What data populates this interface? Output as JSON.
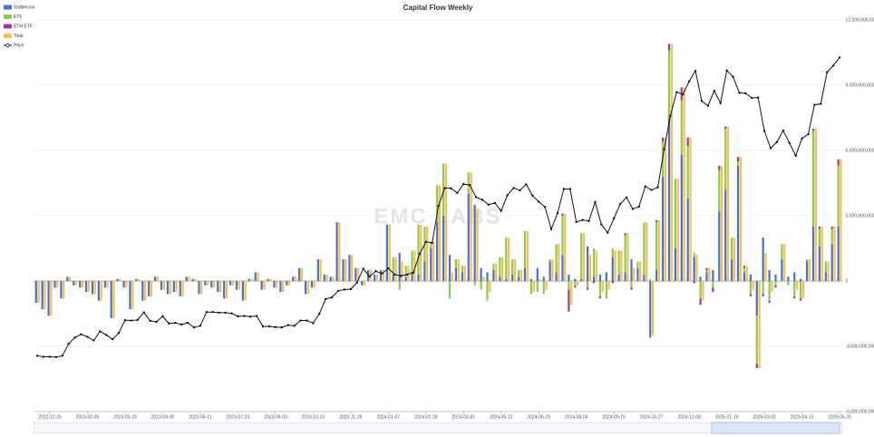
{
  "chart_data": {
    "type": "bar",
    "title": "Capital Flow Weekly",
    "watermark": "EMC LABS",
    "categories": [
      null,
      null,
      "2022-12-25",
      null,
      null,
      null,
      null,
      null,
      "2023-02-05",
      null,
      null,
      null,
      null,
      null,
      "2023-03-19",
      null,
      null,
      null,
      null,
      null,
      "2023-04-30",
      null,
      null,
      null,
      null,
      null,
      "2023-06-11",
      null,
      null,
      null,
      null,
      null,
      "2023-07-23",
      null,
      null,
      null,
      null,
      null,
      "2023-09-03",
      null,
      null,
      null,
      null,
      null,
      "2023-10-15",
      null,
      null,
      null,
      null,
      null,
      "2023-11-26",
      null,
      null,
      null,
      null,
      null,
      "2024-01-07",
      null,
      null,
      null,
      null,
      null,
      "2024-02-18",
      null,
      null,
      null,
      null,
      null,
      "2024-03-31",
      null,
      null,
      null,
      null,
      null,
      "2024-05-12",
      null,
      null,
      null,
      null,
      null,
      "2024-06-23",
      null,
      null,
      null,
      null,
      null,
      "2024-08-04",
      null,
      null,
      null,
      null,
      null,
      "2024-09-15",
      null,
      null,
      null,
      null,
      null,
      "2024-10-27",
      null,
      null,
      null,
      null,
      null,
      "2024-12-08",
      null,
      null,
      null,
      null,
      null,
      "2025-01-19",
      null,
      null,
      null,
      null,
      null,
      "2025-03-02",
      null,
      null,
      null,
      null,
      null,
      "2025-04-13",
      null,
      null,
      null,
      null,
      null,
      "2025-05-25"
    ],
    "series": [
      {
        "name": "Stablecoin",
        "color": "#4b6fd0",
        "stacked": true,
        "values": [
          -1000000000.0,
          -1300000000.0,
          -1600000000.0,
          -300000000.0,
          -800000000.0,
          200000000.0,
          -200000000.0,
          -300000000.0,
          -500000000.0,
          -600000000.0,
          -900000000.0,
          -300000000.0,
          -1700000000.0,
          100000000.0,
          -300000000.0,
          -1300000000.0,
          100000000.0,
          -900000000.0,
          -700000000.0,
          200000000.0,
          -400000000.0,
          -600000000.0,
          -500000000.0,
          -700000000.0,
          200000000.0,
          100000000.0,
          -600000000.0,
          -200000000.0,
          -300000000.0,
          -500000000.0,
          -800000000.0,
          -200000000.0,
          -400000000.0,
          -900000000.0,
          100000000.0,
          400000000.0,
          -400000000.0,
          100000000.0,
          -300000000.0,
          -500000000.0,
          -200000000.0,
          200000000.0,
          600000000.0,
          -600000000.0,
          -300000000.0,
          1000000000.0,
          300000000.0,
          200000000.0,
          2700000000.0,
          1000000000.0,
          1200000000.0,
          600000000.0,
          -200000000.0,
          500000000.0,
          300000000.0,
          500000000.0,
          2600000000.0,
          300000000.0,
          1300000000.0,
          200000000.0,
          400000000.0,
          300000000.0,
          900000000.0,
          1500000000.0,
          2700000000.0,
          3000000000.0,
          1200000000.0,
          600000000.0,
          400000000.0,
          4000000000.0,
          3500000000.0,
          600000000.0,
          400000000.0,
          500000000.0,
          200000000.0,
          100000000.0,
          300000000.0,
          200000000.0,
          600000000.0,
          100000000.0,
          600000000.0,
          200000000.0,
          900000000.0,
          400000000.0,
          1200000000.0,
          300000000.0,
          100000000.0,
          100000000.0,
          1600000000.0,
          200000000.0,
          300000000.0,
          400000000.0,
          1100000000.0,
          300000000.0,
          400000000.0,
          1000000000.0,
          600000000.0,
          300000000.0,
          -2600000000.0,
          500000000.0,
          4800000000.0,
          7500000000.0,
          1500000000.0,
          5800000000.0,
          3800000000.0,
          1100000000.0,
          200000000.0,
          400000000.0,
          500000000.0,
          3200000000.0,
          4200000000.0,
          1000000000.0,
          5300000000.0,
          400000000.0,
          300000000.0,
          -1600000000.0,
          2000000000.0,
          500000000.0,
          300000000.0,
          1000000000.0,
          200000000.0,
          400000000.0,
          100000000.0,
          900000000.0,
          2500000000.0,
          1600000000.0,
          400000000.0,
          1700000000.0,
          2500000000.0
        ]
      },
      {
        "name": "ETF",
        "color": "#8cc85a",
        "stacked": true,
        "values": [
          0,
          0,
          0,
          0,
          0,
          0,
          0,
          0,
          0,
          0,
          0,
          0,
          0,
          0,
          0,
          0,
          0,
          0,
          0,
          0,
          0,
          0,
          0,
          0,
          0,
          0,
          0,
          0,
          0,
          0,
          0,
          0,
          0,
          0,
          0,
          0,
          0,
          0,
          0,
          0,
          0,
          0,
          0,
          0,
          0,
          0,
          0,
          0,
          0,
          0,
          0,
          0,
          0,
          0,
          0,
          0,
          0,
          800000000.0,
          -400000000.0,
          500000000.0,
          1000000000.0,
          2300000000.0,
          1600000000.0,
          300000000.0,
          1700000000.0,
          2400000000.0,
          -800000000.0,
          400000000.0,
          300000000.0,
          1000000000.0,
          -200000000.0,
          -400000000.0,
          -900000000.0,
          300000000.0,
          900000000.0,
          1900000000.0,
          700000000.0,
          300000000.0,
          1700000000.0,
          -600000000.0,
          -500000000.0,
          -600000000.0,
          100000000.0,
          1300000000.0,
          1800000000.0,
          -400000000.0,
          -200000000.0,
          2100000000.0,
          -300000000.0,
          1300000000.0,
          -700000000.0,
          -800000000.0,
          400000000.0,
          1100000000.0,
          1700000000.0,
          -300000000.0,
          300000000.0,
          2400000000.0,
          100000000.0,
          2200000000.0,
          1600000000.0,
          3100000000.0,
          3200000000.0,
          2500000000.0,
          2400000000.0,
          200000000.0,
          -800000000.0,
          100000000.0,
          -300000000.0,
          1900000000.0,
          2800000000.0,
          1000000000.0,
          200000000.0,
          200000000.0,
          -600000000.0,
          -2200000000.0,
          -600000000.0,
          -900000000.0,
          -200000000.0,
          700000000.0,
          -200000000.0,
          -700000000.0,
          -800000000.0,
          100000000.0,
          4400000000.0,
          800000000.0,
          500000000.0,
          700000000.0,
          2800000000.0
        ]
      },
      {
        "name": "ETH ETF",
        "color": "#9b3a9e",
        "stacked": true,
        "values": [
          0,
          0,
          0,
          0,
          0,
          0,
          0,
          0,
          0,
          0,
          0,
          0,
          0,
          0,
          0,
          0,
          0,
          0,
          0,
          0,
          0,
          0,
          0,
          0,
          0,
          0,
          0,
          0,
          0,
          0,
          0,
          0,
          0,
          0,
          0,
          0,
          0,
          0,
          0,
          0,
          0,
          0,
          0,
          0,
          0,
          0,
          0,
          0,
          0,
          0,
          0,
          0,
          0,
          0,
          0,
          0,
          0,
          0,
          0,
          0,
          0,
          0,
          0,
          0,
          0,
          0,
          0,
          0,
          0,
          0,
          0,
          0,
          0,
          0,
          0,
          0,
          0,
          0,
          0,
          0,
          0,
          0,
          0,
          0,
          100000000.0,
          -1000000000.0,
          -100000000.0,
          0,
          -100000000.0,
          -100000000.0,
          -100000000.0,
          0,
          -100000000.0,
          0,
          100000000.0,
          -100000000.0,
          0,
          0,
          0,
          100000000.0,
          200000000.0,
          300000000.0,
          0,
          600000000.0,
          400000000.0,
          -100000000.0,
          -300000000.0,
          100000000.0,
          -200000000.0,
          200000000.0,
          100000000.0,
          0,
          200000000.0,
          100000000.0,
          -100000000.0,
          -200000000.0,
          -100000000.0,
          -100000000.0,
          -100000000.0,
          0,
          0,
          -100000000.0,
          -100000000.0,
          0,
          100000000.0,
          100000000.0,
          0,
          100000000.0,
          300000000.0
        ]
      },
      {
        "name": "Total",
        "color": "#f4c04e",
        "values": [
          -1000000000.0,
          -1300000000.0,
          -1600000000.0,
          -300000000.0,
          -800000000.0,
          200000000.0,
          -200000000.0,
          -300000000.0,
          -500000000.0,
          -600000000.0,
          -900000000.0,
          -300000000.0,
          -1700000000.0,
          100000000.0,
          -300000000.0,
          -1300000000.0,
          100000000.0,
          -900000000.0,
          -700000000.0,
          200000000.0,
          -400000000.0,
          -600000000.0,
          -500000000.0,
          -700000000.0,
          200000000.0,
          100000000.0,
          -600000000.0,
          -200000000.0,
          -300000000.0,
          -500000000.0,
          -800000000.0,
          -200000000.0,
          -400000000.0,
          -900000000.0,
          100000000.0,
          400000000.0,
          -400000000.0,
          100000000.0,
          -300000000.0,
          -500000000.0,
          -200000000.0,
          200000000.0,
          600000000.0,
          -600000000.0,
          -300000000.0,
          1000000000.0,
          300000000.0,
          200000000.0,
          2700000000.0,
          1000000000.0,
          1200000000.0,
          600000000.0,
          -200000000.0,
          500000000.0,
          300000000.0,
          500000000.0,
          2600000000.0,
          1100000000.0,
          900000000.0,
          700000000.0,
          1400000000.0,
          2600000000.0,
          2500000000.0,
          1800000000.0,
          4400000000.0,
          5400000000.0,
          400000000.0,
          1000000000.0,
          700000000.0,
          5000000000.0,
          3300000000.0,
          200000000.0,
          -500000000.0,
          800000000.0,
          1100000000.0,
          2000000000.0,
          1000000000.0,
          500000000.0,
          2300000000.0,
          -500000000.0,
          100000000.0,
          -400000000.0,
          1000000000.0,
          1700000000.0,
          3100000000.0,
          -1100000000.0,
          -200000000.0,
          2200000000.0,
          1200000000.0,
          1400000000.0,
          -500000000.0,
          -400000000.0,
          1400000000.0,
          1400000000.0,
          2200000000.0,
          600000000.0,
          900000000.0,
          2700000000.0,
          -2500000000.0,
          2800000000.0,
          6600000000.0,
          10900000000.0,
          4700000000.0,
          8900000000.0,
          6600000000.0,
          1200000000.0,
          -900000000.0,
          600000000.0,
          0,
          5300000000.0,
          7100000000.0,
          2000000000.0,
          5700000000.0,
          700000000.0,
          -400000000.0,
          -4000000000.0,
          1300000000.0,
          -500000000.0,
          0,
          1700000000.0,
          0,
          -400000000.0,
          -800000000.0,
          1000000000.0,
          7000000000.0,
          2500000000.0,
          900000000.0,
          2500000000.0,
          5600000000.0
        ]
      },
      {
        "name": "Price",
        "color": "#111111",
        "axis": "y2",
        "values": [
          17100,
          16800,
          16800,
          16700,
          17100,
          20800,
          22700,
          23700,
          22900,
          21800,
          24600,
          23500,
          22200,
          24100,
          28000,
          27900,
          28100,
          30400,
          27800,
          27500,
          29200,
          27000,
          27200,
          26700,
          27200,
          25800,
          26300,
          30500,
          30500,
          30300,
          30300,
          30100,
          29200,
          29300,
          29100,
          29300,
          26100,
          26100,
          25900,
          25800,
          26500,
          26300,
          27900,
          27900,
          27100,
          30000,
          34500,
          35000,
          37000,
          37400,
          37500,
          39500,
          43800,
          41400,
          43000,
          42300,
          43900,
          42000,
          41600,
          42000,
          42600,
          48300,
          52000,
          51700,
          63000,
          68500,
          68400,
          67000,
          69700,
          69400,
          65700,
          64900,
          63400,
          63900,
          61500,
          66300,
          68500,
          67800,
          69600,
          66200,
          64300,
          62700,
          55900,
          60800,
          68200,
          68200,
          58100,
          58700,
          58400,
          64200,
          57300,
          54800,
          59200,
          63600,
          65600,
          62100,
          62800,
          69000,
          67900,
          68700,
          80400,
          90600,
          97900,
          97200,
          101200,
          104400,
          95200,
          93700,
          98300,
          94500,
          104500,
          102600,
          97700,
          97500,
          96100,
          96200,
          86000,
          80700,
          82600,
          86100,
          82300,
          78400,
          83700,
          85000,
          94000,
          94300,
          104000,
          106000,
          108500
        ]
      }
    ],
    "ylim": [
      -6000000000,
      12000000000
    ],
    "yticks": [
      {
        "value": -6000000000,
        "label": "-6,000,000,000"
      },
      {
        "value": -3000000000,
        "label": "-3,000,000,000"
      },
      0,
      {
        "value": 3000000000,
        "label": "3,000,000,000"
      },
      {
        "value": 6000000000,
        "label": "6,000,000,000"
      },
      {
        "value": 9000000000,
        "label": "9,000,000,000"
      },
      {
        "value": 12000000000,
        "label": "12,000,000,000"
      }
    ],
    "y2lim": [
      0,
      120000
    ],
    "grid": true,
    "legend": "top-left"
  }
}
